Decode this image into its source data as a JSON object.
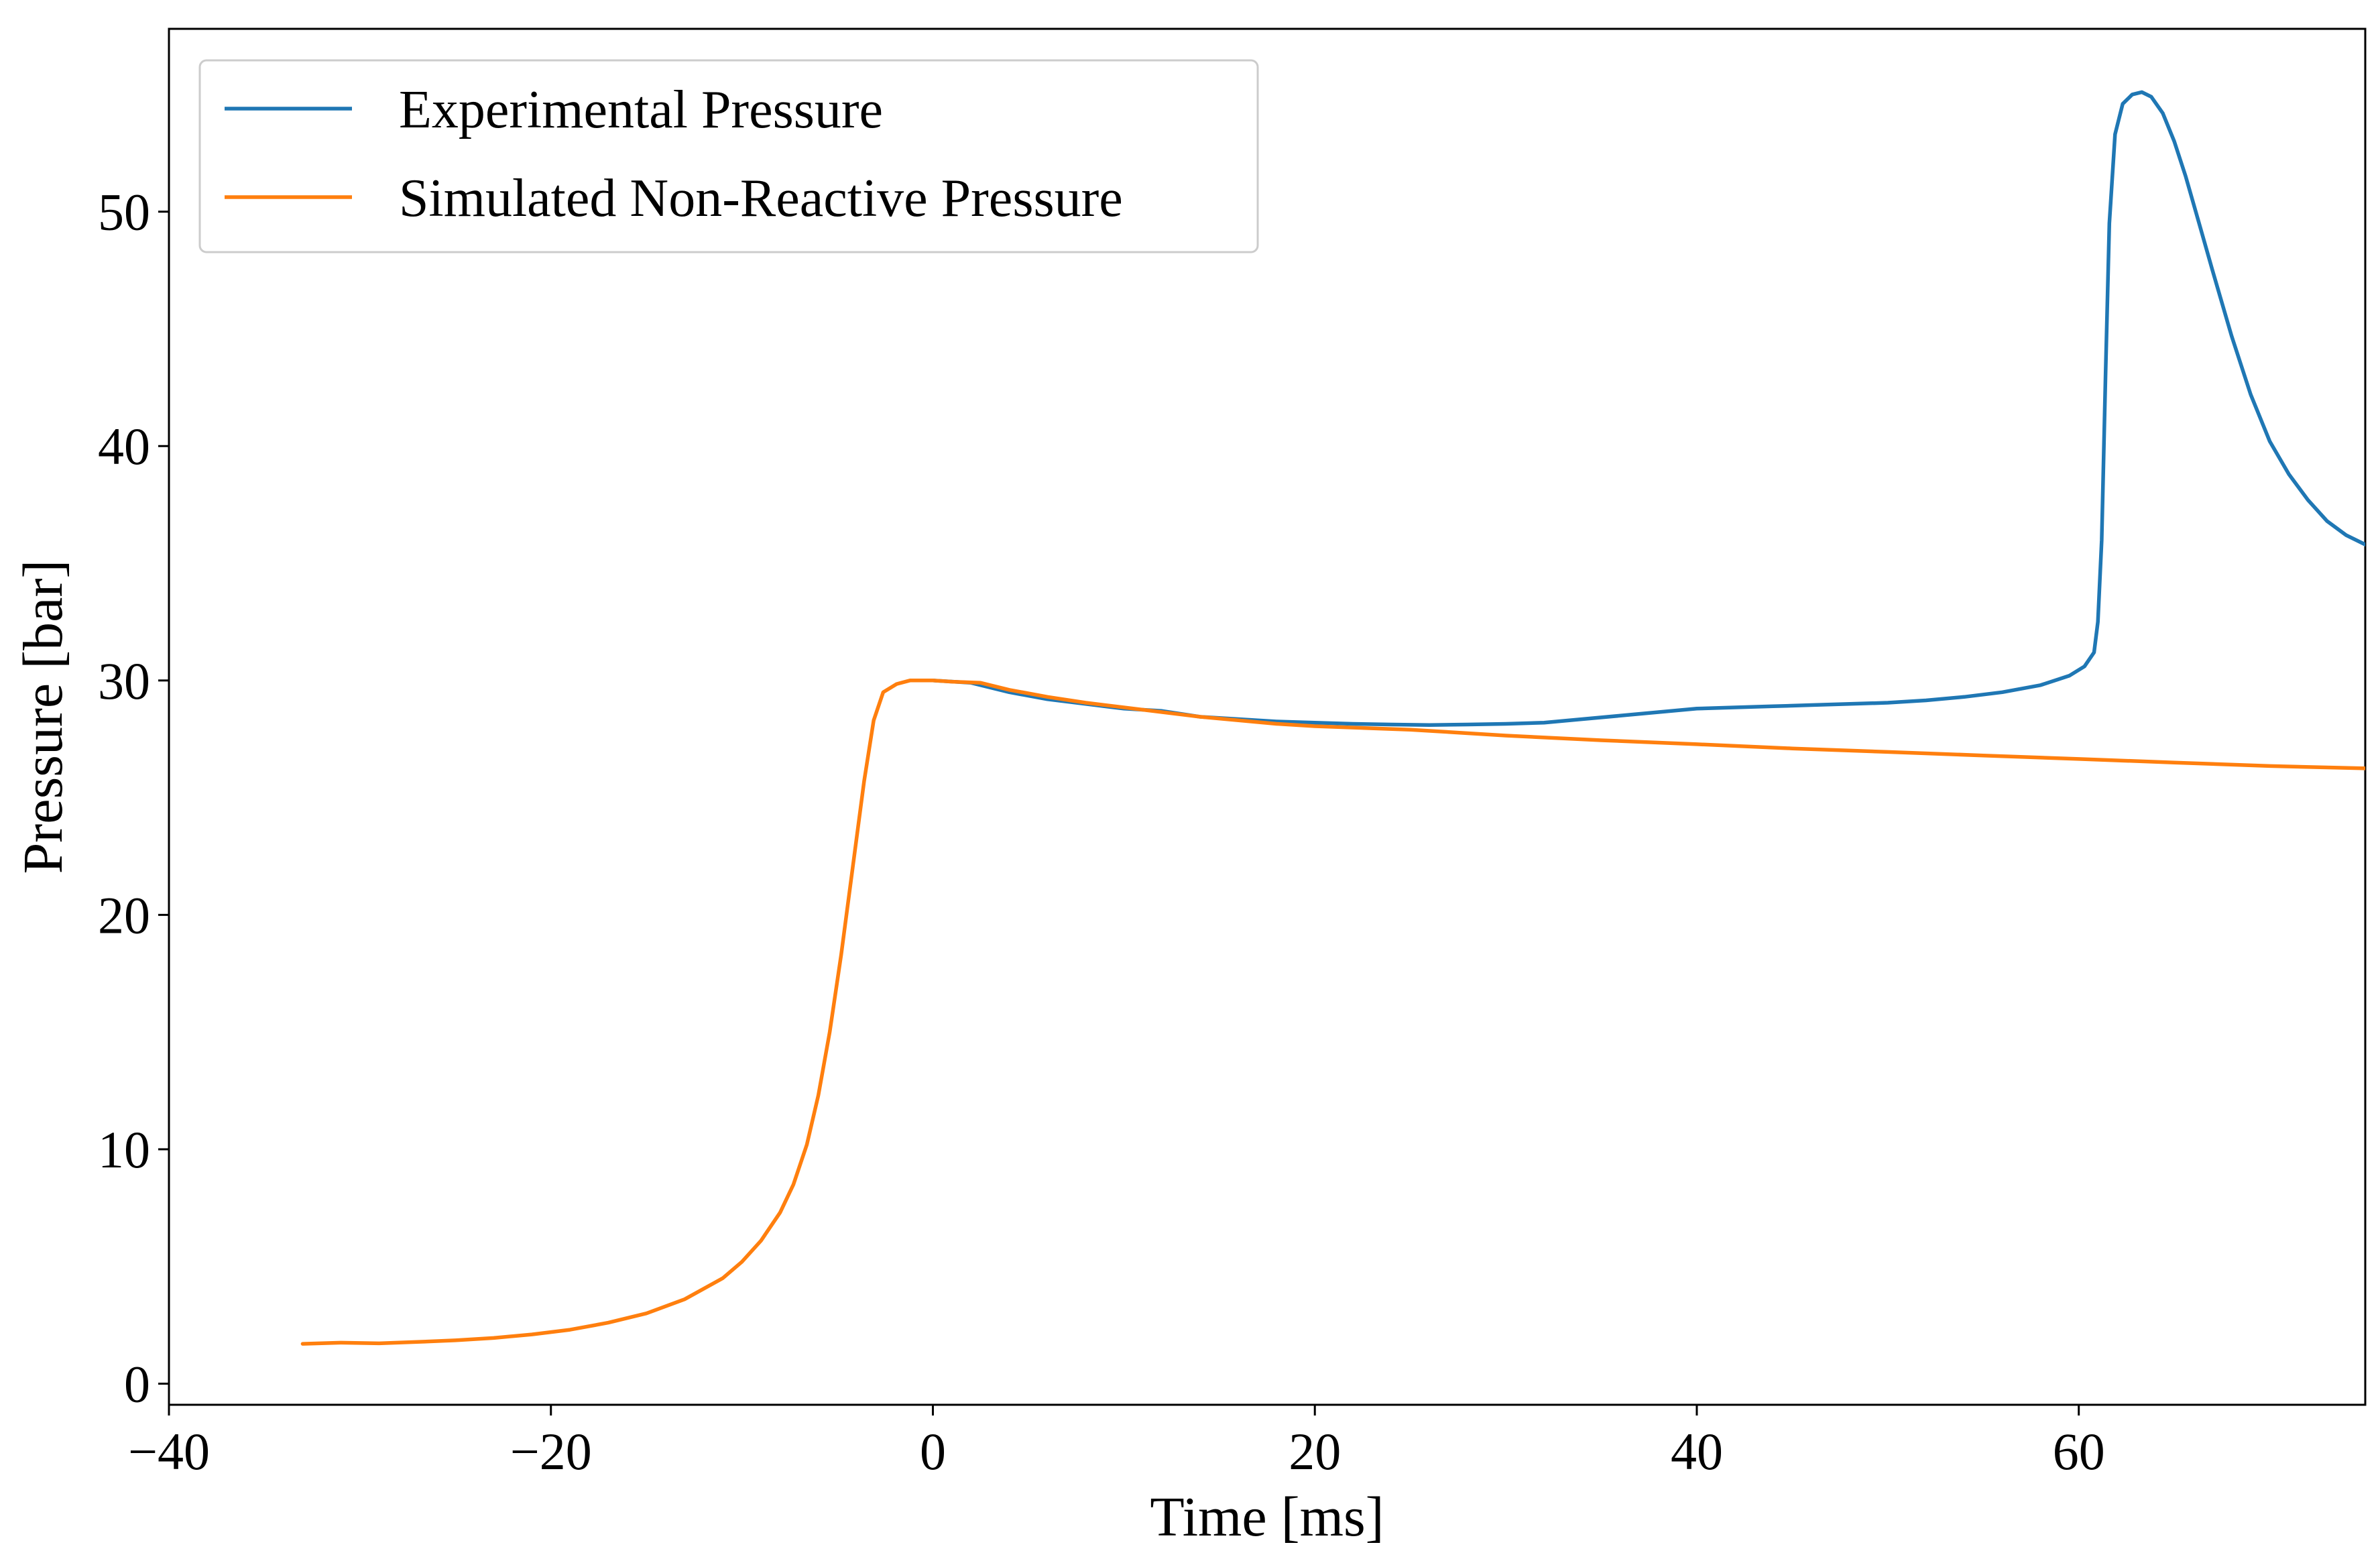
{
  "chart_data": {
    "type": "line",
    "title": "",
    "xlabel": "Time [ms]",
    "ylabel": "Pressure [bar]",
    "xlim": [
      -40,
      75
    ],
    "ylim": [
      -0.9,
      57.8
    ],
    "x_ticks": [
      -40,
      -20,
      0,
      20,
      40,
      60
    ],
    "x_tick_labels": [
      "−40",
      "−20",
      "0",
      "20",
      "40",
      "60"
    ],
    "y_ticks": [
      0,
      10,
      20,
      30,
      40,
      50
    ],
    "y_tick_labels": [
      "0",
      "10",
      "20",
      "30",
      "40",
      "50"
    ],
    "grid": false,
    "legend_position": "top-left",
    "series": [
      {
        "name": "Experimental Pressure",
        "color": "#1f77b4",
        "points": [
          [
            0,
            30.0
          ],
          [
            2,
            29.9
          ],
          [
            4,
            29.5
          ],
          [
            6,
            29.2
          ],
          [
            8,
            29.0
          ],
          [
            10,
            28.8
          ],
          [
            12,
            28.7
          ],
          [
            14,
            28.45
          ],
          [
            16,
            28.35
          ],
          [
            18,
            28.25
          ],
          [
            20,
            28.2
          ],
          [
            22,
            28.15
          ],
          [
            24,
            28.12
          ],
          [
            26,
            28.1
          ],
          [
            28,
            28.12
          ],
          [
            30,
            28.15
          ],
          [
            32,
            28.2
          ],
          [
            34,
            28.35
          ],
          [
            36,
            28.5
          ],
          [
            38,
            28.65
          ],
          [
            40,
            28.8
          ],
          [
            42,
            28.85
          ],
          [
            44,
            28.9
          ],
          [
            46,
            28.95
          ],
          [
            48,
            29.0
          ],
          [
            50,
            29.05
          ],
          [
            52,
            29.15
          ],
          [
            54,
            29.3
          ],
          [
            56,
            29.5
          ],
          [
            58,
            29.8
          ],
          [
            59.5,
            30.2
          ],
          [
            60.3,
            30.6
          ],
          [
            60.8,
            31.2
          ],
          [
            61.0,
            32.5
          ],
          [
            61.2,
            36.0
          ],
          [
            61.4,
            43.0
          ],
          [
            61.6,
            49.5
          ],
          [
            61.9,
            53.3
          ],
          [
            62.3,
            54.6
          ],
          [
            62.8,
            55.0
          ],
          [
            63.3,
            55.1
          ],
          [
            63.8,
            54.9
          ],
          [
            64.4,
            54.2
          ],
          [
            65.0,
            53.0
          ],
          [
            65.6,
            51.5
          ],
          [
            66.3,
            49.5
          ],
          [
            67.0,
            47.5
          ],
          [
            68.0,
            44.7
          ],
          [
            69.0,
            42.2
          ],
          [
            70.0,
            40.2
          ],
          [
            71.0,
            38.8
          ],
          [
            72.0,
            37.7
          ],
          [
            73.0,
            36.8
          ],
          [
            74.0,
            36.2
          ],
          [
            75.0,
            35.8
          ]
        ]
      },
      {
        "name": "Simulated Non-Reactive Pressure",
        "color": "#ff7f0e",
        "points": [
          [
            -33,
            1.7
          ],
          [
            -31,
            1.75
          ],
          [
            -29,
            1.72
          ],
          [
            -27,
            1.78
          ],
          [
            -25,
            1.85
          ],
          [
            -23,
            1.95
          ],
          [
            -21,
            2.1
          ],
          [
            -19,
            2.3
          ],
          [
            -17,
            2.6
          ],
          [
            -15,
            3.0
          ],
          [
            -13,
            3.6
          ],
          [
            -11,
            4.5
          ],
          [
            -10,
            5.2
          ],
          [
            -9,
            6.1
          ],
          [
            -8,
            7.3
          ],
          [
            -7.3,
            8.5
          ],
          [
            -6.6,
            10.2
          ],
          [
            -6.0,
            12.3
          ],
          [
            -5.4,
            15.0
          ],
          [
            -4.8,
            18.3
          ],
          [
            -4.2,
            22.0
          ],
          [
            -3.6,
            25.7
          ],
          [
            -3.1,
            28.3
          ],
          [
            -2.6,
            29.5
          ],
          [
            -1.9,
            29.85
          ],
          [
            -1.2,
            30.0
          ],
          [
            0,
            30.0
          ],
          [
            1,
            29.95
          ],
          [
            2.5,
            29.9
          ],
          [
            4,
            29.6
          ],
          [
            6,
            29.3
          ],
          [
            8,
            29.05
          ],
          [
            10,
            28.85
          ],
          [
            12,
            28.65
          ],
          [
            14,
            28.45
          ],
          [
            16,
            28.3
          ],
          [
            18,
            28.15
          ],
          [
            20,
            28.05
          ],
          [
            25,
            27.9
          ],
          [
            30,
            27.65
          ],
          [
            35,
            27.45
          ],
          [
            40,
            27.28
          ],
          [
            45,
            27.1
          ],
          [
            50,
            26.95
          ],
          [
            55,
            26.8
          ],
          [
            60,
            26.65
          ],
          [
            65,
            26.5
          ],
          [
            70,
            26.35
          ],
          [
            75,
            26.25
          ]
        ]
      }
    ]
  }
}
